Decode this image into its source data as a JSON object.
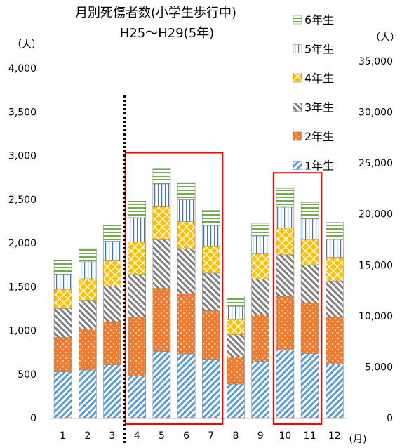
{
  "chart_data": {
    "type": "bar",
    "stacked": true,
    "title": "月別死傷者数(小学生歩行中)",
    "subtitle": "H25～H29(5年)",
    "ylabel_left": "（人）",
    "ylabel_right": "（人）",
    "xlabel": "(月)",
    "categories": [
      "1",
      "2",
      "3",
      "4",
      "5",
      "6",
      "7",
      "8",
      "9",
      "10",
      "11",
      "12"
    ],
    "ylim": [
      0,
      4000
    ],
    "y_ticks": [
      "0",
      "500",
      "1,000",
      "1,500",
      "2,000",
      "2,500",
      "3,000",
      "3,500",
      "4,000"
    ],
    "y_tick_values": [
      0,
      500,
      1000,
      1500,
      2000,
      2500,
      3000,
      3500,
      4000
    ],
    "y2lim": [
      0,
      35000
    ],
    "y2_ticks": [
      "0",
      "5,000",
      "10,000",
      "15,000",
      "20,000",
      "25,000",
      "30,000",
      "35,000"
    ],
    "y2_tick_values": [
      0,
      5000,
      10000,
      15000,
      20000,
      25000,
      30000,
      35000
    ],
    "series": [
      {
        "name": "1年生",
        "color": "#5B9BD5",
        "values": [
          525,
          545,
          605,
          480,
          760,
          730,
          670,
          385,
          645,
          775,
          735,
          615
        ]
      },
      {
        "name": "2年生",
        "color": "#ED7D31",
        "values": [
          395,
          470,
          495,
          670,
          720,
          690,
          555,
          310,
          535,
          615,
          580,
          535
        ]
      },
      {
        "name": "3年生",
        "color": "#7F7F7F",
        "values": [
          330,
          330,
          405,
          490,
          555,
          515,
          430,
          255,
          405,
          475,
          435,
          415
        ]
      },
      {
        "name": "4年生",
        "color": "#FFC000",
        "values": [
          220,
          245,
          300,
          370,
          380,
          310,
          305,
          175,
          290,
          305,
          290,
          270
        ]
      },
      {
        "name": "5年生",
        "color": "#4472C4",
        "values": [
          170,
          195,
          215,
          280,
          260,
          250,
          240,
          150,
          205,
          240,
          235,
          205
        ]
      },
      {
        "name": "6年生",
        "color": "#70AD47",
        "values": [
          165,
          150,
          180,
          190,
          180,
          195,
          175,
          120,
          145,
          215,
          185,
          195
        ]
      }
    ],
    "highlights": [
      {
        "from": "4",
        "to": "7",
        "color": "#FF0000"
      },
      {
        "from": "10",
        "to": "11",
        "color": "#FF0000"
      }
    ],
    "divider_after": "3",
    "grid": false,
    "legend_position": "right"
  }
}
